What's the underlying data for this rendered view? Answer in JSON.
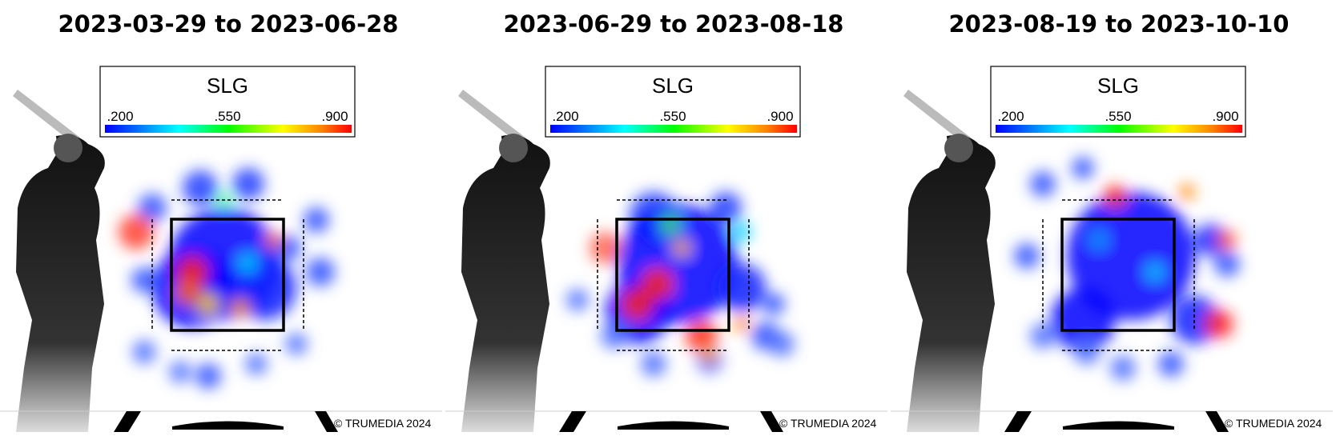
{
  "panels": [
    {
      "title": "2023-03-29 to 2023-06-28",
      "legend": {
        "title": "SLG",
        "ticks": [
          ".200",
          ".550",
          ".900"
        ]
      },
      "credit": "© TRUMEDIA 2024"
    },
    {
      "title": "2023-06-29 to 2023-08-18",
      "legend": {
        "title": "SLG",
        "ticks": [
          ".200",
          ".550",
          ".900"
        ]
      },
      "credit": "© TRUMEDIA 2024"
    },
    {
      "title": "2023-08-19 to 2023-10-10",
      "legend": {
        "title": "SLG",
        "ticks": [
          ".200",
          ".550",
          ".900"
        ]
      },
      "credit": "© TRUMEDIA 2024"
    }
  ]
}
